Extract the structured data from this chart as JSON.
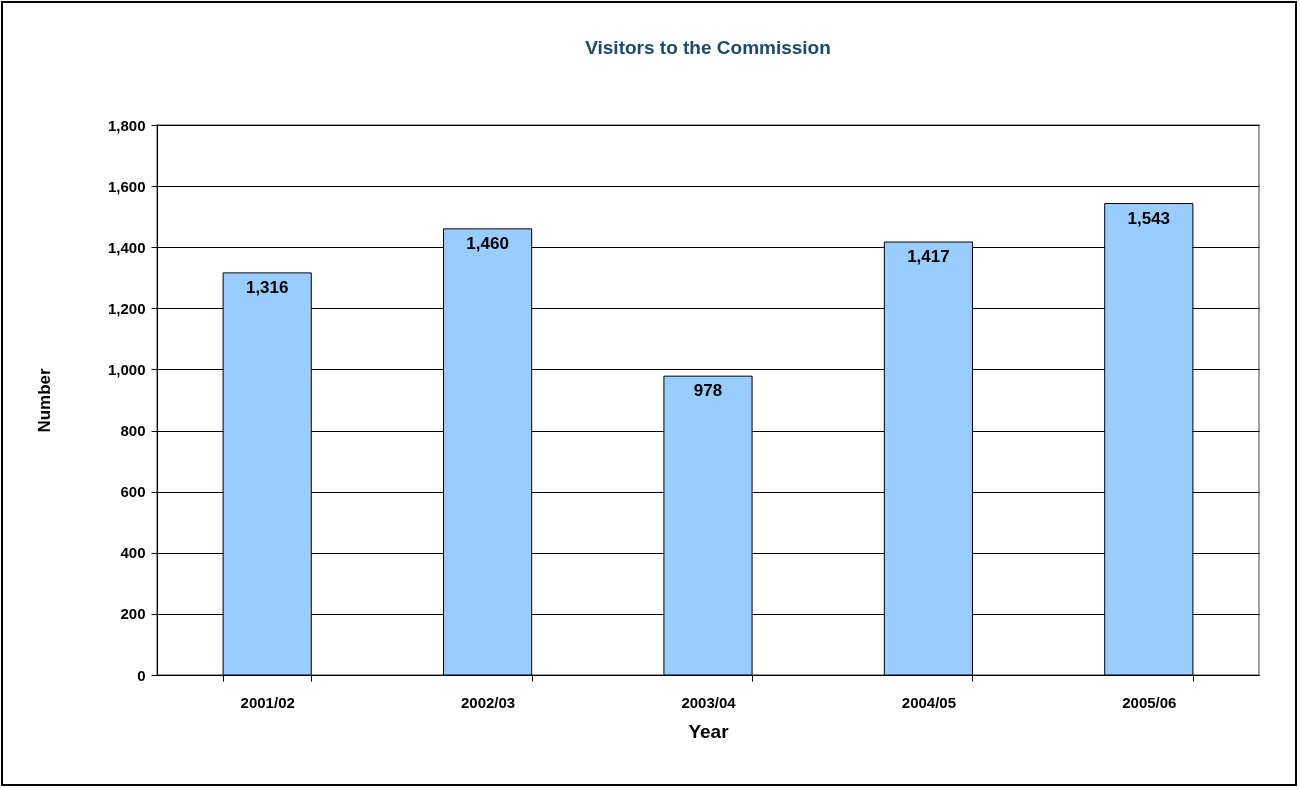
{
  "chart_data": {
    "type": "bar",
    "title": "Visitors to the Commission",
    "xlabel": "Year",
    "ylabel": "Number",
    "categories": [
      "2001/02",
      "2002/03",
      "2003/04",
      "2004/05",
      "2005/06"
    ],
    "values": [
      1316,
      1460,
      978,
      1417,
      1543
    ],
    "color": "#99ccff",
    "value_labels": [
      "1,316",
      "1,460",
      "978",
      "1,417",
      "1,543"
    ],
    "ylim": [
      0,
      1800
    ],
    "yticks": [
      0,
      200,
      400,
      600,
      800,
      {
        "value": 1000,
        "label": "1,000"
      },
      {
        "value": 1200,
        "label": "1,200"
      },
      {
        "value": 1400,
        "label": "1,400"
      },
      {
        "value": 1600,
        "label": "1,600"
      },
      {
        "value": 1800,
        "label": "1,800"
      }
    ],
    "grid": "y"
  }
}
